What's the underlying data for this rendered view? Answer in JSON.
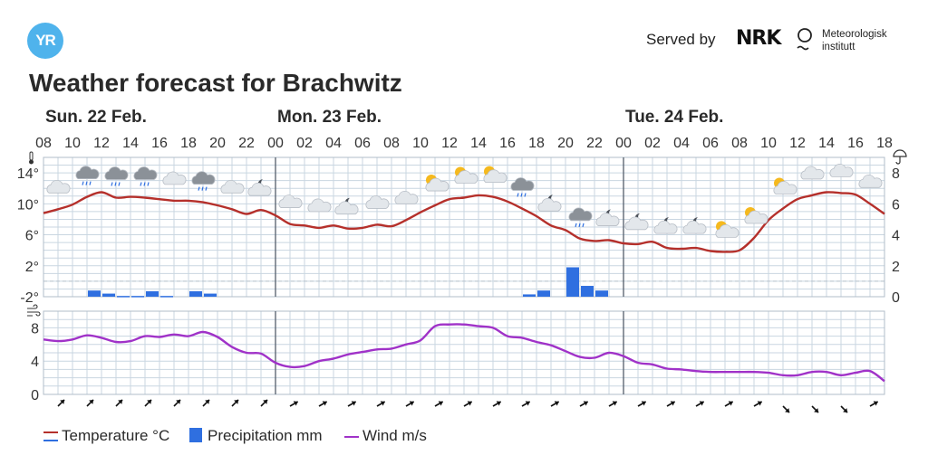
{
  "header": {
    "logo_text": "YR",
    "served_by": "Served by",
    "nrk_logo": "NRK",
    "met_line1": "Meteorologisk",
    "met_line2": "institutt",
    "title": "Weather forecast for Brachwitz"
  },
  "colors": {
    "temperature": "#b5302b",
    "precipitation": "#2f6fe0",
    "wind": "#a032c8",
    "grid": "#c9d6e1",
    "day_divider": "#555e6b",
    "logo": "#4fb3ec"
  },
  "chart_data": {
    "type": "line",
    "days": [
      {
        "label": "Sun. 22 Feb.",
        "start_hour": 8
      },
      {
        "label": "Mon. 23 Feb.",
        "start_hour": 24
      },
      {
        "label": "Tue. 24 Feb.",
        "start_hour": 48
      }
    ],
    "hour_ticks": [
      "08",
      "10",
      "12",
      "14",
      "16",
      "18",
      "20",
      "22",
      "00",
      "02",
      "04",
      "06",
      "08",
      "10",
      "12",
      "14",
      "16",
      "18",
      "20",
      "22",
      "00",
      "02",
      "04",
      "06",
      "08",
      "10",
      "12",
      "14",
      "16",
      "18"
    ],
    "x_range_hours": [
      8,
      66
    ],
    "temperature": {
      "label": "Temperature °C",
      "y_ticks": [
        "14°",
        "10°",
        "6°",
        "2°",
        "-2°"
      ],
      "ylim": [
        -2,
        16
      ],
      "hours": [
        8,
        9,
        10,
        11,
        12,
        13,
        14,
        15,
        16,
        17,
        18,
        19,
        20,
        21,
        22,
        23,
        24,
        25,
        26,
        27,
        28,
        29,
        30,
        31,
        32,
        33,
        34,
        35,
        36,
        37,
        38,
        39,
        40,
        41,
        42,
        43,
        44,
        45,
        46,
        47,
        48,
        49,
        50,
        51,
        52,
        53,
        54,
        55,
        56,
        57,
        58,
        59,
        60,
        61,
        62,
        63,
        64,
        65,
        66
      ],
      "values": [
        8.8,
        9.3,
        9.9,
        10.9,
        11.5,
        10.8,
        10.9,
        10.8,
        10.6,
        10.4,
        10.4,
        10.2,
        9.8,
        9.3,
        8.7,
        9.2,
        8.5,
        7.4,
        7.2,
        6.9,
        7.2,
        6.8,
        6.9,
        7.3,
        7.1,
        7.9,
        8.9,
        9.8,
        10.6,
        10.8,
        11.1,
        10.9,
        10.3,
        9.4,
        8.4,
        7.2,
        6.6,
        5.5,
        5.2,
        5.3,
        4.9,
        4.8,
        5.1,
        4.3,
        4.2,
        4.3,
        3.9,
        3.8,
        4.0,
        5.6,
        7.9,
        9.4,
        10.6,
        11.1,
        11.5,
        11.4,
        11.2,
        10.0,
        8.7
      ]
    },
    "precipitation": {
      "label": "Precipitation mm",
      "y_ticks": [
        "8",
        "6",
        "4",
        "2",
        "0"
      ],
      "ylim": [
        0,
        9
      ],
      "bars": [
        {
          "hour": 11,
          "value": 0.4
        },
        {
          "hour": 12,
          "value": 0.2
        },
        {
          "hour": 13,
          "value": 0.05
        },
        {
          "hour": 14,
          "value": 0.05
        },
        {
          "hour": 15,
          "value": 0.35
        },
        {
          "hour": 16,
          "value": 0.05
        },
        {
          "hour": 18,
          "value": 0.35
        },
        {
          "hour": 19,
          "value": 0.2
        },
        {
          "hour": 41,
          "value": 0.15
        },
        {
          "hour": 42,
          "value": 0.4
        },
        {
          "hour": 44,
          "value": 1.9
        },
        {
          "hour": 45,
          "value": 0.7
        },
        {
          "hour": 46,
          "value": 0.4
        }
      ]
    },
    "weather_symbols": [
      {
        "hour": 9,
        "icon": "cloud-icon"
      },
      {
        "hour": 11,
        "icon": "rain-cloud-icon"
      },
      {
        "hour": 13,
        "icon": "rain-cloud-icon"
      },
      {
        "hour": 15,
        "icon": "rain-cloud-icon"
      },
      {
        "hour": 17,
        "icon": "cloud-icon"
      },
      {
        "hour": 19,
        "icon": "rain-cloud-icon"
      },
      {
        "hour": 21,
        "icon": "cloud-icon"
      },
      {
        "hour": 23,
        "icon": "moon-cloud-icon"
      },
      {
        "hour": 25,
        "icon": "cloud-icon"
      },
      {
        "hour": 27,
        "icon": "cloud-icon"
      },
      {
        "hour": 29,
        "icon": "moon-cloud-icon"
      },
      {
        "hour": 31,
        "icon": "cloud-icon"
      },
      {
        "hour": 33,
        "icon": "cloud-icon"
      },
      {
        "hour": 35,
        "icon": "sun-cloud-icon"
      },
      {
        "hour": 37,
        "icon": "sun-cloud-icon"
      },
      {
        "hour": 39,
        "icon": "sun-cloud-icon"
      },
      {
        "hour": 41,
        "icon": "rain-cloud-icon"
      },
      {
        "hour": 43,
        "icon": "moon-cloud-icon"
      },
      {
        "hour": 45,
        "icon": "rain-cloud-icon"
      },
      {
        "hour": 47,
        "icon": "moon-cloud-icon"
      },
      {
        "hour": 49,
        "icon": "moon-cloud-icon"
      },
      {
        "hour": 51,
        "icon": "moon-cloud-icon"
      },
      {
        "hour": 53,
        "icon": "moon-cloud-icon"
      },
      {
        "hour": 55,
        "icon": "sun-cloud-icon"
      },
      {
        "hour": 57,
        "icon": "sun-cloud-icon"
      },
      {
        "hour": 59,
        "icon": "sun-cloud-icon"
      },
      {
        "hour": 61,
        "icon": "cloud-icon"
      },
      {
        "hour": 63,
        "icon": "cloud-icon"
      },
      {
        "hour": 65,
        "icon": "cloud-icon"
      }
    ],
    "wind": {
      "label": "Wind m/s",
      "y_ticks": [
        "8",
        "4",
        "0"
      ],
      "ylim": [
        0,
        10
      ],
      "hours": [
        8,
        9,
        10,
        11,
        12,
        13,
        14,
        15,
        16,
        17,
        18,
        19,
        20,
        21,
        22,
        23,
        24,
        25,
        26,
        27,
        28,
        29,
        30,
        31,
        32,
        33,
        34,
        35,
        36,
        37,
        38,
        39,
        40,
        41,
        42,
        43,
        44,
        45,
        46,
        47,
        48,
        49,
        50,
        51,
        52,
        53,
        54,
        55,
        56,
        57,
        58,
        59,
        60,
        61,
        62,
        63,
        64,
        65,
        66
      ],
      "values": [
        6.6,
        6.4,
        6.6,
        7.1,
        6.8,
        6.3,
        6.4,
        7.0,
        6.9,
        7.2,
        7.0,
        7.5,
        6.9,
        5.7,
        5.0,
        4.9,
        3.8,
        3.3,
        3.4,
        4.0,
        4.3,
        4.8,
        5.1,
        5.4,
        5.5,
        6.0,
        6.5,
        8.2,
        8.4,
        8.4,
        8.2,
        8.0,
        7.0,
        6.8,
        6.3,
        5.9,
        5.2,
        4.5,
        4.4,
        5.0,
        4.6,
        3.8,
        3.6,
        3.1,
        3.0,
        2.8,
        2.7,
        2.7,
        2.7,
        2.7,
        2.6,
        2.3,
        2.3,
        2.7,
        2.7,
        2.3,
        2.6,
        2.8,
        1.6
      ],
      "direction_hours": [
        9,
        11,
        13,
        15,
        17,
        19,
        21,
        23,
        25,
        27,
        29,
        31,
        33,
        35,
        37,
        39,
        41,
        43,
        45,
        47,
        49,
        51,
        53,
        55,
        57,
        59,
        61,
        63,
        65
      ],
      "arrow_angles": [
        45,
        45,
        45,
        45,
        45,
        45,
        45,
        45,
        60,
        60,
        60,
        60,
        60,
        60,
        60,
        60,
        60,
        60,
        60,
        60,
        60,
        60,
        60,
        60,
        60,
        135,
        135,
        135,
        60
      ]
    }
  },
  "legend": {
    "temperature": "Temperature °C",
    "precipitation": "Precipitation mm",
    "wind": "Wind m/s"
  }
}
